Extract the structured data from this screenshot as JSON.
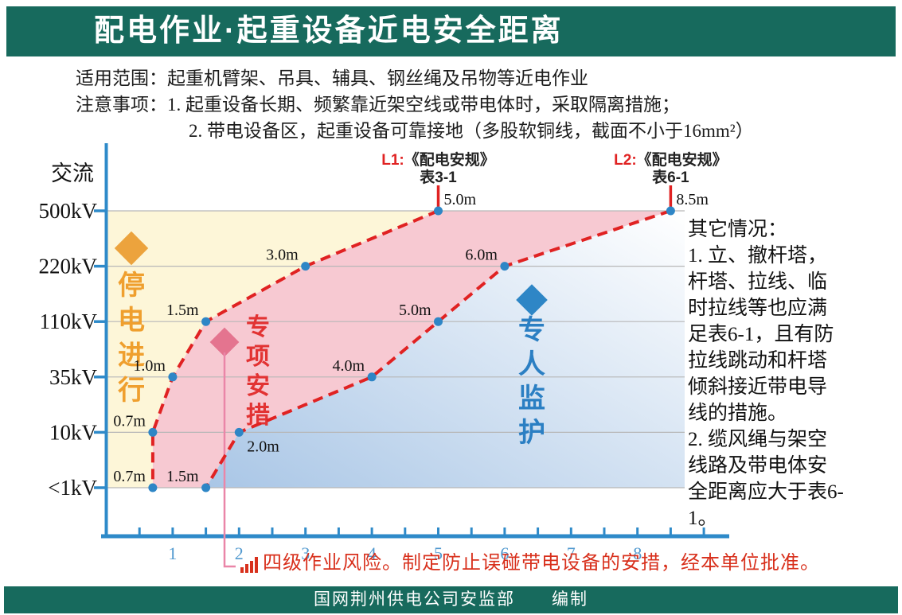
{
  "header": {
    "title": "配电作业·起重设备近电安全距离"
  },
  "intro": {
    "scope_label": "适用范围：",
    "scope_text": "起重机臂架、吊具、辅具、钢丝绳及吊物等近电作业",
    "notes_label": "注意事项：",
    "note1": "1. 起重设备长期、频繁靠近架空线或带电体时，采取隔离措施；",
    "note2": "2. 带电设备区，起重设备可靠接地（多股软铜线，截面不小于16mm²）"
  },
  "chart_data": {
    "type": "line",
    "title": "起重设备近电安全距离",
    "y_axis_title": "交流",
    "voltage_levels": [
      "500kV",
      "220kV",
      "110kV",
      "35kV",
      "10kV",
      "<1kV"
    ],
    "x_ticks": [
      "1",
      "2",
      "3",
      "4",
      "5",
      "6",
      "7",
      "8"
    ],
    "x_unit": "m",
    "xlim": [
      0,
      9.4
    ],
    "grid": true,
    "series": [
      {
        "name": "L1",
        "title_prefix": "L1:",
        "title_ref": "《配电安规》",
        "title_table": "表3-1",
        "distances_m": [
          5.0,
          3.0,
          1.5,
          1.0,
          0.7,
          0.7
        ],
        "labels": [
          "5.0m",
          "3.0m",
          "1.5m",
          "1.0m",
          "0.7m",
          "0.7m"
        ]
      },
      {
        "name": "L2",
        "title_prefix": "L2:",
        "title_ref": "《配电安规》",
        "title_table": "表6-1",
        "distances_m": [
          8.5,
          6.0,
          5.0,
          4.0,
          2.0,
          1.5
        ],
        "labels": [
          "8.5m",
          "6.0m",
          "5.0m",
          "4.0m",
          "2.0m",
          "1.5m"
        ]
      }
    ],
    "zones": [
      {
        "id": "outage",
        "label": "停电进行",
        "text_color": "#ef9f2e",
        "diamond_color": "#eca33d",
        "fill": "#fdf6d8"
      },
      {
        "id": "special-measures",
        "label": "专项安措",
        "text_color": "#e23333",
        "diamond_color": "#e4748f",
        "fill": "#f7c9d2"
      },
      {
        "id": "dedicated-monitor",
        "label": "专人监护",
        "text_color": "#2b7fc3",
        "diamond_color": "#2e86c6",
        "fill_gradient": [
          "#a9c6e6",
          "#ffffff"
        ]
      }
    ],
    "line_color": "#e02222",
    "point_color": "#2e86c6",
    "axis_color": "#2e8ac9"
  },
  "side_note": {
    "title": "其它情况：",
    "item1": "1. 立、撤杆塔，杆塔、拉线、临时拉线等也应满足表6-1，且有防拉线跳动和杆塔倾斜接近带电导线的措施。",
    "item2": "2. 缆风绳与架空线路及带电体安全距离应大于表6-1。"
  },
  "risk_note": {
    "text": "四级作业风险。制定防止误碰带电设备的安措，经本单位批准。"
  },
  "footer": {
    "text": "国网荆州供电公司安监部　　编制"
  }
}
